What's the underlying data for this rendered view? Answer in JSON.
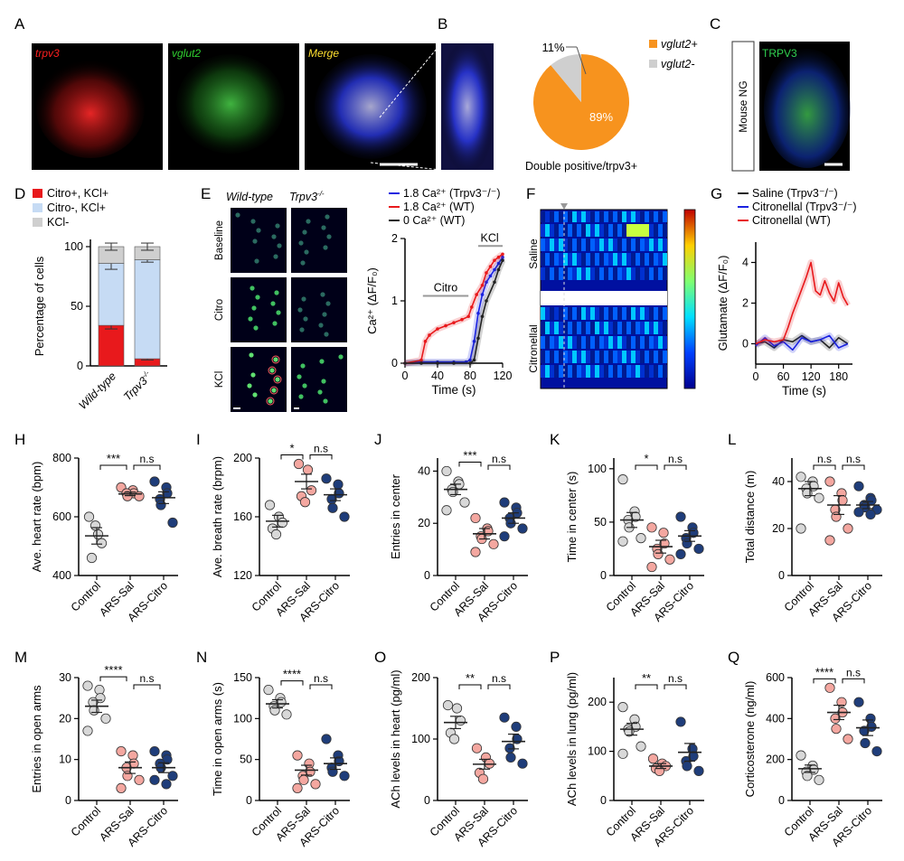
{
  "panel_letters": [
    "A",
    "B",
    "C",
    "D",
    "E",
    "F",
    "G",
    "H",
    "I",
    "J",
    "K",
    "L",
    "M",
    "N",
    "O",
    "P",
    "Q"
  ],
  "panelA": {
    "labels": [
      "trpv3",
      "vglut2",
      "Merge"
    ],
    "colors": [
      "#ff2020",
      "#30d030",
      "#ffe030"
    ]
  },
  "panelC": {
    "side_label": "Mouse NG",
    "label": "TRPV3"
  },
  "panelE": {
    "col_titles": [
      "Wild-type",
      "Trpv3"
    ],
    "col_title_sup": "-/-",
    "row_labels": [
      "Baseline",
      "Citro",
      "KCl"
    ]
  },
  "panelF": {
    "group_labels": [
      "Saline",
      "Citronellal"
    ]
  },
  "colors": {
    "control": "#d8d8d8",
    "sal": "#f4a7a0",
    "citro": "#1f3d7a",
    "red": "#e8191c",
    "lightblue": "#c6dbf4",
    "grey": "#cfcfcf",
    "orange": "#f7931e",
    "blue": "#1a22e0",
    "black": "#222222"
  },
  "chart_data": [
    {
      "id": "B",
      "type": "pie",
      "title": "Double positive/trpv3+",
      "slices": [
        {
          "label": "vglut2+",
          "value": 89,
          "text": "89%"
        },
        {
          "label": "vglut2-",
          "value": 11,
          "text": "11%"
        }
      ]
    },
    {
      "id": "D",
      "type": "bar",
      "stacked": true,
      "categories": [
        "Wild-type",
        "Trpv3"
      ],
      "cat_sup": [
        "",
        "-/-"
      ],
      "ylabel": "Percentage of cells",
      "ylim": [
        0,
        100
      ],
      "yticks": [
        0,
        50,
        100
      ],
      "legend": [
        "Citro+, KCl+",
        "Citro-, KCl+",
        "KCl-"
      ],
      "series": [
        {
          "name": "Citro+, KCl+",
          "values": [
            34,
            6
          ],
          "err": [
            3,
            1
          ]
        },
        {
          "name": "Citro-, KCl+",
          "values": [
            52,
            83
          ],
          "err": [
            5,
            2
          ]
        },
        {
          "name": "KCl-",
          "values": [
            14,
            11
          ],
          "err": [
            3,
            3
          ]
        }
      ]
    },
    {
      "id": "E",
      "type": "line",
      "xlabel": "Time (s)",
      "ylabel": "Ca2+ (ΔF/F0)",
      "xlim": [
        0,
        120
      ],
      "ylim": [
        0,
        2
      ],
      "xticks": [
        0,
        40,
        80,
        120
      ],
      "yticks": [
        0,
        1,
        2
      ],
      "annotations": [
        "Citro",
        "KCl"
      ],
      "series": [
        {
          "name": "1.8 Ca2+ (Trpv3-/-)",
          "x": [
            0,
            20,
            40,
            60,
            75,
            80,
            85,
            90,
            95,
            100,
            105,
            110,
            115,
            120
          ],
          "y": [
            0,
            0.02,
            0.02,
            0.02,
            0.02,
            0.05,
            0.35,
            0.8,
            1.1,
            1.3,
            1.4,
            1.5,
            1.6,
            1.7
          ]
        },
        {
          "name": "1.8 Ca2+ (WT)",
          "x": [
            0,
            20,
            25,
            30,
            40,
            50,
            60,
            70,
            78,
            82,
            88,
            95,
            100,
            105,
            110,
            115,
            120
          ],
          "y": [
            0,
            0.05,
            0.35,
            0.45,
            0.55,
            0.6,
            0.65,
            0.7,
            0.75,
            0.9,
            1.1,
            1.25,
            1.45,
            1.55,
            1.65,
            1.7,
            1.75
          ]
        },
        {
          "name": "0 Ca2+ (WT)",
          "x": [
            0,
            20,
            40,
            60,
            80,
            85,
            90,
            95,
            100,
            110,
            115,
            120
          ],
          "y": [
            0,
            0,
            0,
            0,
            0,
            0.05,
            0.4,
            0.75,
            1.0,
            1.3,
            1.5,
            1.65
          ]
        }
      ]
    },
    {
      "id": "G",
      "type": "line",
      "xlabel": "Time (s)",
      "ylabel": "Glutamate (ΔF/F0)",
      "xlim": [
        0,
        210
      ],
      "ylim": [
        -1,
        5
      ],
      "xticks": [
        0,
        60,
        120,
        180
      ],
      "yticks": [
        0,
        2,
        4
      ],
      "series": [
        {
          "name": "Saline (Trpv3-/-)",
          "x": [
            0,
            20,
            40,
            60,
            80,
            100,
            120,
            140,
            160,
            180,
            200
          ],
          "y": [
            0,
            0.1,
            -0.2,
            0.2,
            0.1,
            0.4,
            0.1,
            0.2,
            -0.2,
            0.3,
            0
          ]
        },
        {
          "name": "Citronellal (Trpv3-/-)",
          "x": [
            0,
            20,
            40,
            60,
            80,
            100,
            120,
            140,
            160,
            180,
            200
          ],
          "y": [
            -0.1,
            0.3,
            -0.1,
            0.1,
            -0.3,
            0.3,
            0.1,
            0.2,
            0.4,
            -0.2,
            0
          ]
        },
        {
          "name": "Citronellal (WT)",
          "x": [
            0,
            20,
            40,
            60,
            70,
            80,
            90,
            100,
            110,
            120,
            130,
            140,
            150,
            160,
            170,
            180,
            190,
            200
          ],
          "y": [
            0,
            0.2,
            0.1,
            0.2,
            0.8,
            1.5,
            2.1,
            2.7,
            3.3,
            4.0,
            2.6,
            2.4,
            3.1,
            2.5,
            2.1,
            3.0,
            2.3,
            1.9
          ]
        }
      ]
    },
    {
      "id": "H",
      "type": "scatter",
      "ylabel": "Ave. heart rate (bpm)",
      "ylim": [
        400,
        800
      ],
      "yticks": [
        400,
        600,
        800
      ],
      "categories": [
        "Control",
        "ARS-Sal",
        "ARS-Citro"
      ],
      "groups": [
        [
          600,
          540,
          510,
          460,
          570
        ],
        [
          700,
          690,
          680,
          680,
          670,
          670
        ],
        [
          720,
          700,
          680,
          660,
          640,
          580
        ]
      ],
      "means": [
        535,
        678,
        665
      ],
      "sems": [
        28,
        6,
        20
      ],
      "sig": [
        "***",
        "n.s"
      ]
    },
    {
      "id": "I",
      "type": "scatter",
      "ylabel": "Ave. breath rate (brpm)",
      "ylim": [
        120,
        200
      ],
      "yticks": [
        120,
        160,
        200
      ],
      "categories": [
        "Control",
        "ARS-Sal",
        "ARS-Citro"
      ],
      "groups": [
        [
          168,
          160,
          156,
          152,
          148
        ],
        [
          196,
          192,
          178,
          174,
          170
        ],
        [
          186,
          182,
          176,
          172,
          166,
          160
        ]
      ],
      "means": [
        157,
        184,
        175
      ],
      "sems": [
        4,
        5,
        4
      ],
      "sig": [
        "*",
        "n.s"
      ]
    },
    {
      "id": "J",
      "type": "scatter",
      "ylabel": "Entries in center",
      "ylim": [
        0,
        45
      ],
      "yticks": [
        0,
        20,
        40
      ],
      "categories": [
        "Control",
        "ARS-Sal",
        "ARS-Citro"
      ],
      "groups": [
        [
          40,
          36,
          35,
          33,
          32,
          28,
          25
        ],
        [
          22,
          18,
          17,
          15,
          14,
          12,
          9
        ],
        [
          28,
          26,
          24,
          22,
          20,
          18,
          15
        ]
      ],
      "means": [
        33,
        16,
        22
      ],
      "sems": [
        2,
        2,
        2
      ],
      "sig": [
        "***",
        "n.s"
      ]
    },
    {
      "id": "K",
      "type": "scatter",
      "ylabel": "Time in center (s)",
      "ylim": [
        0,
        110
      ],
      "yticks": [
        0,
        50,
        100
      ],
      "categories": [
        "Control",
        "ARS-Sal",
        "ARS-Citro"
      ],
      "groups": [
        [
          90,
          60,
          55,
          52,
          45,
          35,
          32
        ],
        [
          45,
          40,
          30,
          25,
          20,
          15,
          8
        ],
        [
          55,
          45,
          40,
          35,
          30,
          25,
          20
        ]
      ],
      "means": [
        52,
        27,
        37
      ],
      "sems": [
        7,
        6,
        5
      ],
      "sig": [
        "*",
        "n.s"
      ]
    },
    {
      "id": "L",
      "type": "scatter",
      "ylabel": "Total distance (m)",
      "ylim": [
        0,
        50
      ],
      "yticks": [
        0,
        20,
        40
      ],
      "categories": [
        "Control",
        "ARS-Sal",
        "ARS-Citro"
      ],
      "groups": [
        [
          42,
          40,
          38,
          37,
          35,
          33,
          20
        ],
        [
          40,
          35,
          32,
          28,
          25,
          20,
          15
        ],
        [
          38,
          33,
          32,
          30,
          29,
          28,
          27,
          26
        ]
      ],
      "means": [
        37,
        30,
        30
      ],
      "sems": [
        3,
        4,
        1.5
      ],
      "sig": [
        "n.s",
        "n.s"
      ]
    },
    {
      "id": "M",
      "type": "scatter",
      "ylabel": "Entries in open arms",
      "ylim": [
        0,
        30
      ],
      "yticks": [
        0,
        10,
        20,
        30
      ],
      "categories": [
        "Control",
        "ARS-Sal",
        "ARS-Citro"
      ],
      "groups": [
        [
          28,
          27,
          25,
          24,
          22,
          20,
          17
        ],
        [
          12,
          11,
          9,
          8,
          6,
          5,
          3
        ],
        [
          12,
          11,
          10,
          9,
          8,
          6,
          5,
          4
        ]
      ],
      "means": [
        23,
        8,
        8
      ],
      "sems": [
        1.5,
        1.4,
        1.2
      ],
      "sig": [
        "****",
        "n.s"
      ]
    },
    {
      "id": "N",
      "type": "scatter",
      "ylabel": "Time in open arms (s)",
      "ylim": [
        0,
        150
      ],
      "yticks": [
        0,
        50,
        100,
        150
      ],
      "categories": [
        "Control",
        "ARS-Sal",
        "ARS-Citro"
      ],
      "groups": [
        [
          135,
          125,
          120,
          115,
          110,
          105
        ],
        [
          55,
          45,
          35,
          30,
          25,
          20,
          15
        ],
        [
          75,
          55,
          48,
          40,
          35,
          30
        ]
      ],
      "means": [
        118,
        37,
        45
      ],
      "sems": [
        5,
        6,
        7
      ],
      "sig": [
        "****",
        "n.s"
      ]
    },
    {
      "id": "O",
      "type": "scatter",
      "ylabel": "ACh levels in heart (pg/ml)",
      "ylim": [
        0,
        200
      ],
      "yticks": [
        0,
        100,
        200
      ],
      "categories": [
        "Control",
        "ARS-Sal",
        "ARS-Citro"
      ],
      "groups": [
        [
          155,
          150,
          130,
          110,
          100
        ],
        [
          85,
          70,
          60,
          45,
          35
        ],
        [
          135,
          120,
          100,
          85,
          70,
          60
        ]
      ],
      "means": [
        127,
        59,
        96
      ],
      "sems": [
        10,
        8,
        12
      ],
      "sig": [
        "**",
        "n.s"
      ]
    },
    {
      "id": "P",
      "type": "scatter",
      "ylabel": "ACh levels in lung (pg/ml)",
      "ylim": [
        0,
        250
      ],
      "yticks": [
        0,
        100,
        200
      ],
      "categories": [
        "Control",
        "ARS-Sal",
        "ARS-Citro"
      ],
      "groups": [
        [
          190,
          165,
          150,
          145,
          140,
          110,
          95
        ],
        [
          85,
          75,
          70,
          65,
          60
        ],
        [
          160,
          105,
          90,
          80,
          70,
          60
        ]
      ],
      "means": [
        145,
        70,
        98
      ],
      "sems": [
        12,
        5,
        18
      ],
      "sig": [
        "**",
        "n.s"
      ]
    },
    {
      "id": "Q",
      "type": "scatter",
      "ylabel": "Corticosterone (ng/ml)",
      "ylim": [
        0,
        600
      ],
      "yticks": [
        0,
        200,
        400,
        600
      ],
      "categories": [
        "Control",
        "ARS-Sal",
        "ARS-Citro"
      ],
      "groups": [
        [
          220,
          170,
          150,
          140,
          120,
          100
        ],
        [
          550,
          480,
          430,
          400,
          350,
          300
        ],
        [
          480,
          400,
          360,
          340,
          280,
          240
        ]
      ],
      "means": [
        155,
        430,
        355
      ],
      "sems": [
        18,
        35,
        38
      ],
      "sig": [
        "****",
        "n.s"
      ]
    }
  ]
}
